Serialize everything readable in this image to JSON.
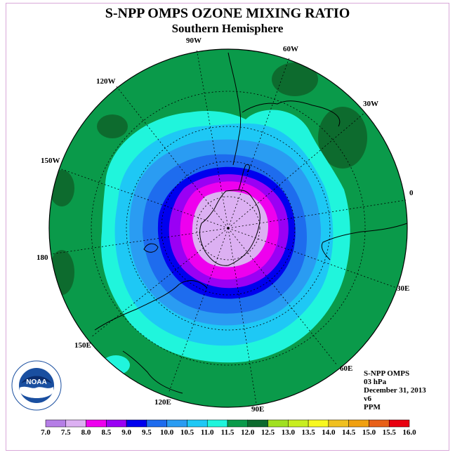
{
  "title": "S-NPP OMPS OZONE MIXING RATIO",
  "subtitle": "Southern Hemisphere",
  "longitude_labels": {
    "w90": "90W",
    "w60": "60W",
    "w30": "30W",
    "e0": "0",
    "w120": "120W",
    "w150": "150W",
    "l180": "180",
    "e30": "30E",
    "e60": "60E",
    "e90": "90E",
    "e120": "120E",
    "e150": "150E"
  },
  "info": {
    "instrument": "S-NPP OMPS",
    "level": "03 hPa",
    "date": "December 31, 2013",
    "version": "v6",
    "units": "PPM"
  },
  "logo_text": "NOAA",
  "colorbar": {
    "labels": [
      "7.0",
      "7.5",
      "8.0",
      "8.5",
      "9.0",
      "9.5",
      "10.0",
      "10.5",
      "11.0",
      "11.5",
      "12.0",
      "12.5",
      "13.0",
      "13.5",
      "14.0",
      "14.5",
      "15.0",
      "15.5",
      "16.0"
    ],
    "colors": [
      "#b57ee6",
      "#dcb0f2",
      "#ee00ee",
      "#9a00f4",
      "#0000ee",
      "#1e6cee",
      "#2a9cf2",
      "#1ec8f5",
      "#20f5dc",
      "#0a9a4a",
      "#0d6b2e",
      "#a0e020",
      "#c8ee20",
      "#f8f820",
      "#f0c020",
      "#f0a010",
      "#e86018",
      "#e80010",
      "#805040"
    ]
  }
}
